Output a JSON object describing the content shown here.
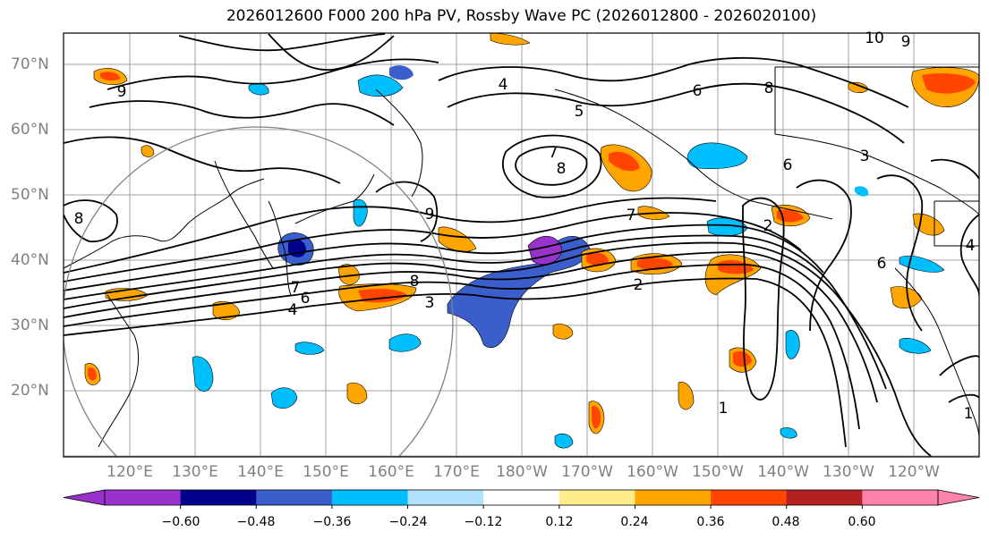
{
  "title": "2026012600 F000 200 hPa PV, Rossby Wave PC (2026012800 - 2026020100)",
  "map": {
    "lat_labels": [
      "70°N",
      "60°N",
      "50°N",
      "40°N",
      "30°N",
      "20°N"
    ],
    "lon_labels": [
      "120°E",
      "130°E",
      "140°E",
      "150°E",
      "160°E",
      "170°E",
      "180°W",
      "170°W",
      "160°W",
      "150°W",
      "140°W",
      "130°W",
      "120°W"
    ],
    "contour_labels": [
      "9",
      "4",
      "5",
      "6",
      "8",
      "7",
      "8",
      "6",
      "7",
      "2",
      "6",
      "8",
      "7",
      "6",
      "4",
      "3",
      "2",
      "1",
      "9",
      "8",
      "1",
      "10",
      "9",
      "3",
      "4"
    ]
  },
  "colorbar": {
    "ticks": [
      "−0.60",
      "−0.48",
      "−0.36",
      "−0.24",
      "−0.12",
      "0.12",
      "0.24",
      "0.36",
      "0.48",
      "0.60"
    ],
    "colors": [
      "#9932cc",
      "#00008b",
      "#3a5fcd",
      "#00bfff",
      "#b0e2ff",
      "#ffffff",
      "#ffec8b",
      "#ffa500",
      "#ff4500",
      "#b22222",
      "#ff82ab"
    ]
  }
}
